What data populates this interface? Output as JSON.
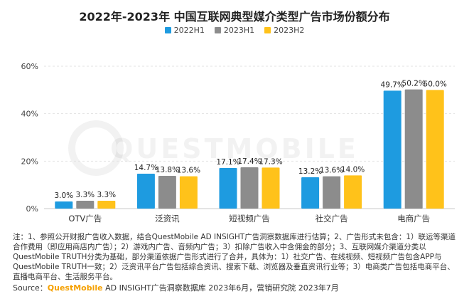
{
  "title": "2022年-2023年 中国互联网典型媒介类型广告市场份额分布",
  "colors": {
    "2022H1": "#1e9be0",
    "2023H1": "#8c8c8c",
    "2023H2": "#ffc21a"
  },
  "chart_data": {
    "type": "bar",
    "title": "2022年-2023年 中国互联网典型媒介类型广告市场份额分布",
    "categories": [
      "OTV广告",
      "泛资讯",
      "短视频广告",
      "社交广告",
      "电商广告"
    ],
    "series": [
      {
        "name": "2022H1",
        "values": [
          3.0,
          14.7,
          17.1,
          13.2,
          49.7
        ],
        "labels": [
          "3.0%",
          "14.7%",
          "17.1%",
          "13.2%",
          "49.7%"
        ]
      },
      {
        "name": "2023H1",
        "values": [
          3.3,
          13.8,
          17.4,
          13.6,
          50.2
        ],
        "labels": [
          "3.3%",
          "13.8%",
          "17.4%",
          "13.6%",
          "50.2%"
        ]
      },
      {
        "name": "2023H2",
        "values": [
          3.3,
          13.6,
          17.3,
          14.0,
          50.0
        ],
        "labels": [
          "3.3%",
          "13.6%",
          "17.3%",
          "14.0%",
          "50.0%"
        ]
      }
    ],
    "yticks": [
      "0%",
      "20%",
      "40%",
      "60%"
    ],
    "ylim": [
      0,
      60
    ],
    "xlabel": "",
    "ylabel": "",
    "legend_position": "top",
    "grid": true
  },
  "watermark": "QUESTMOBILE",
  "note": "注：1、参照公开财报广告收入数据，结合QuestMobile AD INSIGHT广告洞察数据库进行估算；2、广告形式未包含：1）联运等渠道合作费用（即应用商店内广告）；2）游戏内广告、音频内广告；3）扣除广告收入中含佣金的部分；3、互联网媒介渠道分类以QuestMobile TRUTH分类为基础，部分渠道依据广告形式进行了合并，具体为：1）社交广告、在线视频、短视频广告包含APP与QuestMobile TRUTH一致；2）泛资讯平台广告包括综合资讯、搜索下载、浏览器及垂直资讯行业等；3）电商类广告包括电商平台、直播电商平台、生活服务平台。",
  "source": {
    "prefix": "Source：",
    "brand": "QuestMobile",
    "rest": " AD INSIGHT广告洞察数据库 2023年6月，营销研究院 2023年7月"
  }
}
